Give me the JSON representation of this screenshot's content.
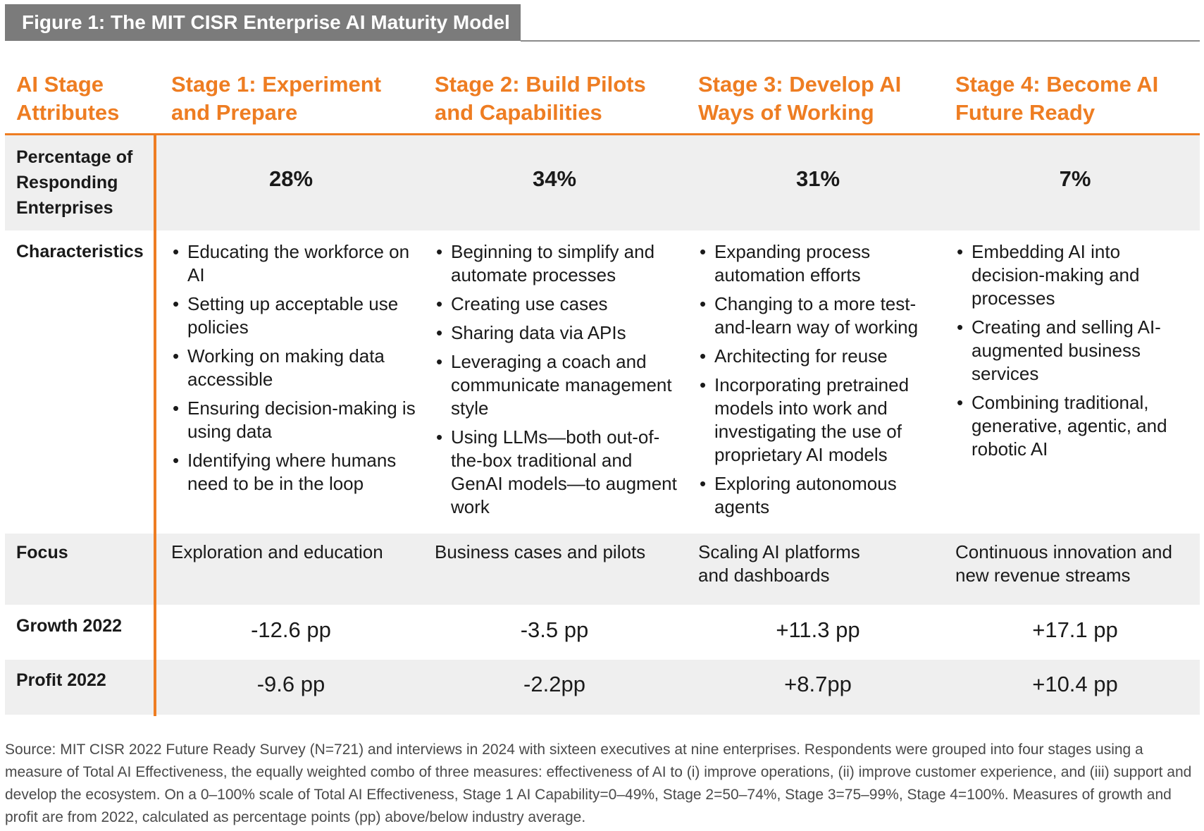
{
  "figure": {
    "title": "Figure 1:  The MIT CISR Enterprise AI Maturity Model"
  },
  "header": {
    "attributes": "AI Stage Attributes",
    "stages": [
      "Stage 1: Experiment and Prepare",
      "Stage 2: Build Pilots and Capabilities",
      "Stage 3: Develop AI Ways of Working",
      "Stage 4: Become AI Future Ready"
    ]
  },
  "rows": {
    "percentage": {
      "label": "Percentage of Responding Enterprises",
      "values": [
        "28%",
        "34%",
        "31%",
        "7%"
      ]
    },
    "characteristics": {
      "label": "Characteristics",
      "stages": [
        [
          "Educating the workforce on AI",
          "Setting up acceptable use policies",
          "Working on making data accessible",
          "Ensuring decision-making is using data",
          "Identifying where humans need to be in the loop"
        ],
        [
          "Beginning to simplify and automate processes",
          "Creating use cases",
          "Sharing data via APIs",
          "Leveraging a coach and communicate management style",
          "Using LLMs—both out-of-the-box traditional and GenAI models—to augment work"
        ],
        [
          "Expanding process automation efforts",
          "Changing to a more test-and-learn way of working",
          "Architecting for reuse",
          "Incorporating pretrained models into work and investigating the use of proprietary AI models",
          "Exploring autonomous agents"
        ],
        [
          "Embedding AI into decision-making and processes",
          "Creating and selling AI-augmented business services",
          "Combining traditional, generative, agentic, and robotic AI"
        ]
      ]
    },
    "focus": {
      "label": "Focus",
      "values": [
        "Exploration and education",
        "Business cases and pilots",
        "Scaling AI platforms and dashboards",
        "Continuous innovation and new revenue streams"
      ]
    },
    "growth": {
      "label": "Growth 2022",
      "values": [
        "-12.6 pp",
        "-3.5 pp",
        "+11.3 pp",
        "+17.1 pp"
      ]
    },
    "profit": {
      "label": "Profit 2022",
      "values": [
        "-9.6 pp",
        "-2.2pp",
        "+8.7pp",
        "+10.4 pp"
      ]
    }
  },
  "source": "Source: MIT CISR 2022 Future Ready Survey (N=721) and interviews in 2024 with sixteen executives at nine enterprises. Respondents were grouped into four stages using a measure of Total AI Effectiveness, the equally weighted combo of three measures: effectiveness of AI to (i) improve operations, (ii) improve customer experience, and (iii) support and develop the ecosystem. On a 0–100% scale of Total AI Effectiveness, Stage 1 AI Capability=0–49%, Stage 2=50–74%, Stage 3=75–99%, Stage 4=100%. Measures of growth and profit are from 2022, calculated as percentage points (pp) above/below industry average."
}
